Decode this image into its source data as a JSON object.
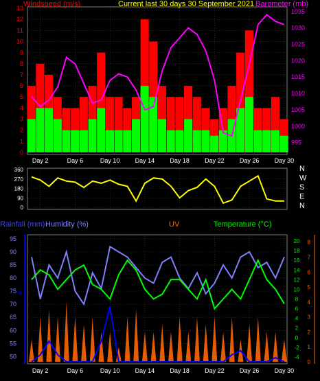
{
  "header": {
    "title": "Current last 30 days 30 September 2021",
    "left_label": "Windspeed (m/s)",
    "right_label": "Barometer (mb)"
  },
  "colors": {
    "wind_avg": "#00ff00",
    "wind_gust": "#ff0000",
    "barometer": "#ff00ff",
    "direction": "#ffff00",
    "rainfall": "#0000ff",
    "humidity": "#8080ff",
    "uv": "#ff6600",
    "temperature": "#00ff00",
    "grid": "#404040",
    "frame": "#808080"
  },
  "x_ticks": [
    "Day 2",
    "Day 6",
    "Day 10",
    "Day 14",
    "Day 18",
    "Day 22",
    "Day 26",
    "Day 30"
  ],
  "chart_data": [
    {
      "type": "area",
      "xlabel": "",
      "ylabel": "Windspeed (m/s)",
      "y2label": "Barometer (mb)",
      "ylim": [
        0,
        13
      ],
      "y2lim": [
        992,
        1036
      ],
      "y_ticks": [
        "0",
        "1",
        "2",
        "3",
        "4",
        "5",
        "6",
        "7",
        "8",
        "9",
        "10",
        "11",
        "12",
        "13"
      ],
      "y2_ticks": [
        "995",
        "1000",
        "1005",
        "1010",
        "1015",
        "1020",
        "1025",
        "1030",
        "1035"
      ],
      "x": [
        1,
        2,
        3,
        4,
        5,
        6,
        7,
        8,
        9,
        10,
        11,
        12,
        13,
        14,
        15,
        16,
        17,
        18,
        19,
        20,
        21,
        22,
        23,
        24,
        25,
        26,
        27,
        28,
        29,
        30
      ],
      "series": [
        {
          "name": "Barometer",
          "values": [
            1009,
            1006,
            1008,
            1012,
            1021,
            1019,
            1013,
            1007,
            1008,
            1014,
            1016,
            1015,
            1011,
            1005,
            1006,
            1017,
            1024,
            1027,
            1030,
            1028,
            1023,
            1014,
            998,
            997,
            1008,
            1019,
            1031,
            1034,
            1032,
            1031
          ]
        },
        {
          "name": "Wind gust",
          "values": [
            6,
            8,
            7,
            5,
            4,
            4,
            5,
            6,
            9,
            5,
            5,
            4,
            5,
            12,
            10,
            6,
            5,
            5,
            6,
            5,
            4,
            3,
            4,
            6,
            9,
            11,
            4,
            4,
            5,
            3
          ]
        },
        {
          "name": "Wind avg",
          "values": [
            3,
            4,
            4,
            3,
            2,
            2,
            2,
            3,
            4,
            2,
            2,
            2,
            3,
            6,
            5,
            3,
            2,
            2,
            3,
            2,
            2,
            1.5,
            2,
            3,
            4,
            5,
            2,
            2,
            2,
            1.5
          ]
        }
      ]
    },
    {
      "type": "line",
      "ylabel": "",
      "ylim": [
        0,
        360
      ],
      "y_ticks": [
        "0",
        "90",
        "180",
        "270",
        "360"
      ],
      "direction_labels": [
        "N",
        "W",
        "S",
        "E",
        "N"
      ],
      "x": [
        1,
        2,
        3,
        4,
        5,
        6,
        7,
        8,
        9,
        10,
        11,
        12,
        13,
        14,
        15,
        16,
        17,
        18,
        19,
        20,
        21,
        22,
        23,
        24,
        25,
        26,
        27,
        28,
        29,
        30
      ],
      "series": [
        {
          "name": "Wind direction",
          "values": [
            290,
            260,
            200,
            280,
            250,
            240,
            190,
            250,
            230,
            260,
            220,
            200,
            60,
            230,
            280,
            270,
            200,
            90,
            160,
            190,
            270,
            200,
            40,
            70,
            200,
            250,
            300,
            80,
            60,
            60
          ]
        }
      ]
    },
    {
      "type": "line",
      "ylabel": "Humidity (%)",
      "y_left2_label": "Rainfall (mm)",
      "y2label": "Temperature (°C)",
      "y3label": "UV",
      "ylim": [
        48,
        96
      ],
      "y2lim": [
        -5,
        21
      ],
      "y3lim": [
        0,
        8.4
      ],
      "y_ticks": [
        "50",
        "55",
        "60",
        "65",
        "70",
        "75",
        "80",
        "85",
        "90",
        "95"
      ],
      "y2_ticks": [
        "-4",
        "-2",
        "0",
        "2",
        "4",
        "6",
        "8",
        "10",
        "12",
        "14",
        "16",
        "18",
        "20"
      ],
      "y3_ticks": [
        "0",
        "1",
        "2",
        "3",
        "4",
        "5",
        "6",
        "7",
        "8"
      ],
      "rain_ticks": [
        "5"
      ],
      "x": [
        1,
        2,
        3,
        4,
        5,
        6,
        7,
        8,
        9,
        10,
        11,
        12,
        13,
        14,
        15,
        16,
        17,
        18,
        19,
        20,
        21,
        22,
        23,
        24,
        25,
        26,
        27,
        28,
        29,
        30
      ],
      "series": [
        {
          "name": "Humidity",
          "values": [
            88,
            72,
            85,
            80,
            90,
            75,
            70,
            82,
            76,
            92,
            90,
            88,
            84,
            80,
            78,
            86,
            88,
            80,
            76,
            82,
            74,
            78,
            85,
            80,
            88,
            90,
            84,
            86,
            80,
            88
          ]
        },
        {
          "name": "Temperature",
          "values": [
            12,
            14,
            13,
            10,
            12,
            14,
            15,
            11,
            10,
            8,
            13,
            16,
            14,
            10,
            8,
            9,
            12,
            12,
            10,
            8,
            12,
            6,
            8,
            10,
            8,
            12,
            16,
            12,
            10,
            7
          ]
        },
        {
          "name": "UV",
          "values": [
            1.5,
            3,
            3.5,
            3,
            4,
            3,
            2.5,
            3,
            2,
            2,
            1,
            3,
            3.5,
            2,
            2,
            2.5,
            2,
            3,
            2,
            3,
            2.5,
            3,
            2,
            3,
            1.5,
            2.5,
            3,
            2,
            2,
            1.5
          ]
        },
        {
          "name": "Rainfall",
          "values": [
            0,
            0.5,
            1.5,
            0.5,
            0,
            0,
            0,
            0,
            1.5,
            4,
            0,
            0,
            0,
            0,
            0,
            0,
            0,
            0,
            0,
            0,
            0,
            0,
            0,
            0.5,
            0.8,
            0,
            0,
            0,
            0.3,
            0
          ]
        }
      ]
    }
  ],
  "lower_labels": {
    "rainfall": "Rainfall (mm)",
    "humidity": "Humidity (%)",
    "uv": "UV",
    "temperature": "Temperature (°C)"
  }
}
